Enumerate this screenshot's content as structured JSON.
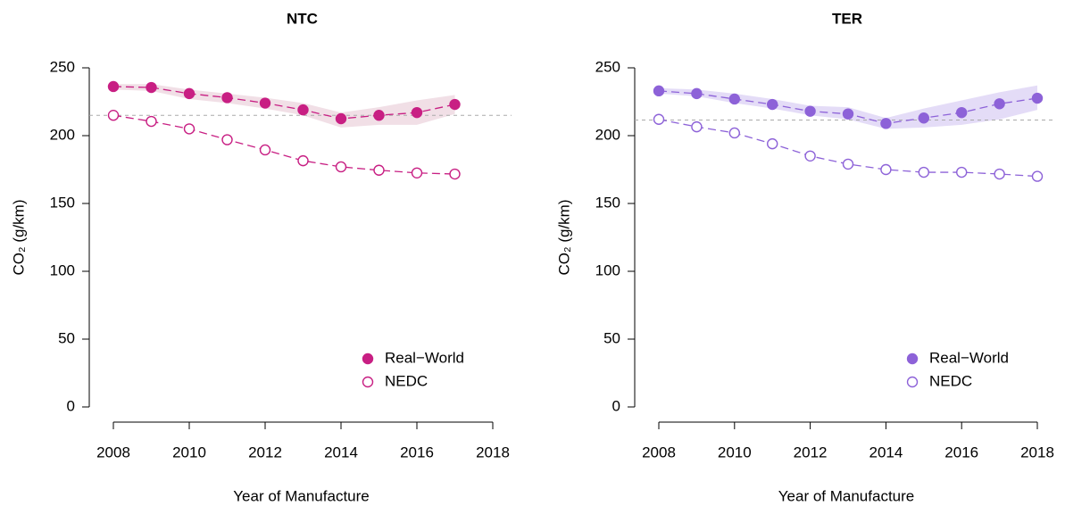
{
  "chart_data": [
    {
      "type": "line",
      "title": "NTC",
      "xlabel": "Year of Manufacture",
      "ylabel": "CO₂ (g/km)",
      "x": [
        2008,
        2009,
        2010,
        2011,
        2012,
        2013,
        2014,
        2015,
        2016,
        2017
      ],
      "series": [
        {
          "name": "Real−World",
          "color": "#c81f83",
          "marker": "filled",
          "band_color": "#f1dfe6",
          "values": [
            236.2,
            235.5,
            231,
            228,
            224,
            219,
            212.5,
            215,
            217,
            223
          ],
          "band_lower": [
            234,
            233,
            227,
            224,
            220,
            215,
            206,
            208,
            208,
            216
          ],
          "band_upper": [
            238,
            238,
            234,
            231,
            228,
            224,
            217,
            221,
            226,
            230
          ]
        },
        {
          "name": "NEDC",
          "color": "#c81f83",
          "marker": "open",
          "values": [
            215,
            210.5,
            205,
            197,
            189.5,
            181.5,
            177,
            174.5,
            172.5,
            171.7
          ]
        }
      ],
      "xlim": [
        2008,
        2018
      ],
      "xticks": [
        2008,
        2010,
        2012,
        2014,
        2016,
        2018
      ],
      "ylim": [
        0,
        250
      ],
      "yticks": [
        0,
        50,
        100,
        150,
        200,
        250
      ],
      "reference_line": 215,
      "legend": "bottom-right"
    },
    {
      "type": "line",
      "title": "TER",
      "xlabel": "Year of Manufacture",
      "ylabel": "CO₂ (g/km)",
      "x": [
        2008,
        2009,
        2010,
        2011,
        2012,
        2013,
        2014,
        2015,
        2016,
        2017,
        2018
      ],
      "series": [
        {
          "name": "Real−World",
          "color": "#8d62d8",
          "marker": "filled",
          "band_color": "#e4dcf7",
          "values": [
            233,
            231,
            227,
            223,
            218,
            216,
            209,
            213,
            217,
            223.5,
            227.6
          ],
          "band_lower": [
            231,
            229,
            224,
            220,
            215,
            212,
            205,
            206,
            208,
            212,
            219
          ],
          "band_upper": [
            235,
            234,
            231,
            227,
            222,
            221,
            213,
            220,
            226,
            232,
            237
          ]
        },
        {
          "name": "NEDC",
          "color": "#8d62d8",
          "marker": "open",
          "values": [
            212,
            206.5,
            202,
            194,
            185,
            179,
            175,
            173,
            173,
            171.7,
            170
          ]
        }
      ],
      "xlim": [
        2008,
        2018
      ],
      "xticks": [
        2008,
        2010,
        2012,
        2014,
        2016,
        2018
      ],
      "ylim": [
        0,
        250
      ],
      "yticks": [
        0,
        50,
        100,
        150,
        200,
        250
      ],
      "reference_line": 211.5,
      "legend": "bottom-right"
    }
  ]
}
